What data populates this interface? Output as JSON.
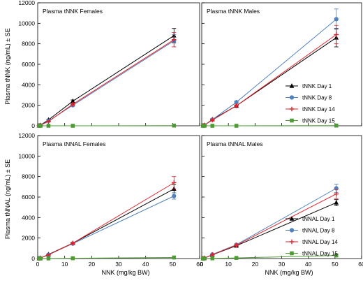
{
  "figure": {
    "xlabel": "NNK (mg/kg BW)",
    "ylabel_top": "Plasma tNNK (ng/mL) ± SE",
    "ylabel_bottom": "Plasma tNNAL (ng/mL) ± SE"
  },
  "chart_data": [
    {
      "type": "line",
      "title": "Plasma tNNK Females",
      "xlabel": "NNK (mg/kg BW)",
      "ylabel": "Plasma tNNK (ng/mL) ± SE",
      "xlim": [
        0,
        60
      ],
      "ylim": [
        0,
        12000
      ],
      "xticks": [
        0,
        10,
        20,
        30,
        40,
        50,
        60
      ],
      "yticks": [
        0,
        2000,
        4000,
        6000,
        8000,
        10000,
        12000
      ],
      "grid": false,
      "legend": "none",
      "series": [
        {
          "name": "tNNK Day 1",
          "color": "#000000",
          "marker": "triangle",
          "x": [
            0.5,
            1,
            4,
            13,
            50.5
          ],
          "y": [
            10,
            60,
            580,
            2400,
            8800
          ],
          "err": [
            0,
            0,
            60,
            120,
            700
          ]
        },
        {
          "name": "tNNK Day 8",
          "color": "#4f81bd",
          "marker": "circle",
          "x": [
            0.5,
            1,
            4,
            13,
            50.5
          ],
          "y": [
            10,
            50,
            480,
            2000,
            8300
          ],
          "err": [
            0,
            0,
            50,
            100,
            600
          ]
        },
        {
          "name": "tNNK Day 14",
          "color": "#e0212b",
          "marker": "plus",
          "x": [
            0.5,
            1,
            4,
            13,
            50.5
          ],
          "y": [
            10,
            50,
            420,
            2100,
            8400
          ],
          "err": [
            0,
            0,
            50,
            100,
            700
          ]
        },
        {
          "name": "tNNK Day 15",
          "color": "#4e9a35",
          "marker": "square",
          "x": [
            0.5,
            1,
            4,
            13,
            50.5
          ],
          "y": [
            0,
            0,
            0,
            0,
            20
          ],
          "err": [
            0,
            0,
            0,
            0,
            0
          ]
        }
      ]
    },
    {
      "type": "line",
      "title": "Plasma tNNK Males",
      "xlabel": "NNK (mg/kg BW)",
      "xlim": [
        0,
        60
      ],
      "ylim": [
        0,
        12000
      ],
      "xticks": [
        0,
        10,
        20,
        30,
        40,
        50,
        60
      ],
      "yticks": [
        0,
        2000,
        4000,
        6000,
        8000,
        10000,
        12000
      ],
      "grid": false,
      "legend": "lower-right",
      "series": [
        {
          "name": "tNNK Day 1",
          "color": "#000000",
          "marker": "triangle",
          "x": [
            0.5,
            1,
            4,
            13,
            50.5
          ],
          "y": [
            10,
            60,
            620,
            1950,
            8600
          ],
          "err": [
            0,
            0,
            60,
            100,
            900
          ]
        },
        {
          "name": "tNNK Day 8",
          "color": "#4f81bd",
          "marker": "circle",
          "x": [
            0.5,
            1,
            4,
            13,
            50.5
          ],
          "y": [
            10,
            60,
            600,
            2300,
            10400
          ],
          "err": [
            0,
            0,
            60,
            120,
            1000
          ]
        },
        {
          "name": "tNNK Day 14",
          "color": "#e0212b",
          "marker": "plus",
          "x": [
            0.5,
            1,
            4,
            13,
            50.5
          ],
          "y": [
            10,
            60,
            560,
            1950,
            8900
          ],
          "err": [
            0,
            0,
            60,
            100,
            900
          ]
        },
        {
          "name": "tNNK Day 15",
          "color": "#4e9a35",
          "marker": "square",
          "x": [
            0.5,
            1,
            4,
            13,
            50.5
          ],
          "y": [
            0,
            0,
            0,
            0,
            20
          ],
          "err": [
            0,
            0,
            0,
            0,
            0
          ]
        }
      ]
    },
    {
      "type": "line",
      "title": "Plasma tNNAL Females",
      "xlabel": "NNK (mg/kg BW)",
      "ylabel": "Plasma tNNAL (ng/mL) ± SE",
      "xlim": [
        0,
        60
      ],
      "ylim": [
        0,
        12000
      ],
      "xticks": [
        0,
        10,
        20,
        30,
        40,
        50,
        60
      ],
      "yticks": [
        0,
        2000,
        4000,
        6000,
        8000,
        10000,
        12000
      ],
      "grid": false,
      "legend": "none",
      "series": [
        {
          "name": "tNNAL Day 1",
          "color": "#000000",
          "marker": "triangle",
          "x": [
            0.5,
            1,
            4,
            13,
            50.5
          ],
          "y": [
            10,
            40,
            400,
            1500,
            6800
          ],
          "err": [
            0,
            0,
            40,
            80,
            400
          ]
        },
        {
          "name": "tNNAL Day 8",
          "color": "#4f81bd",
          "marker": "circle",
          "x": [
            0.5,
            1,
            4,
            13,
            50.5
          ],
          "y": [
            10,
            40,
            380,
            1450,
            6100
          ],
          "err": [
            0,
            0,
            40,
            80,
            300
          ]
        },
        {
          "name": "tNNAL Day 14",
          "color": "#e0212b",
          "marker": "plus",
          "x": [
            0.5,
            1,
            4,
            13,
            50.5
          ],
          "y": [
            10,
            40,
            360,
            1500,
            7400
          ],
          "err": [
            0,
            0,
            40,
            80,
            600
          ]
        },
        {
          "name": "tNNAL Day 15",
          "color": "#4e9a35",
          "marker": "square",
          "x": [
            0.5,
            1,
            4,
            13,
            50.5
          ],
          "y": [
            0,
            5,
            10,
            30,
            100
          ],
          "err": [
            0,
            0,
            0,
            0,
            0
          ]
        }
      ]
    },
    {
      "type": "line",
      "title": "Plasma tNNAL Males",
      "xlabel": "NNK (mg/kg BW)",
      "xlim": [
        0,
        60
      ],
      "ylim": [
        0,
        12000
      ],
      "xticks": [
        0,
        10,
        20,
        30,
        40,
        50,
        60
      ],
      "yticks": [
        0,
        2000,
        4000,
        6000,
        8000,
        10000,
        12000
      ],
      "grid": false,
      "legend": "lower-right",
      "series": [
        {
          "name": "tNNAL Day 1",
          "color": "#000000",
          "marker": "triangle",
          "x": [
            0.5,
            1,
            4,
            13,
            50.5
          ],
          "y": [
            10,
            40,
            360,
            1250,
            5450
          ],
          "err": [
            0,
            0,
            40,
            80,
            300
          ]
        },
        {
          "name": "tNNAL Day 8",
          "color": "#4f81bd",
          "marker": "circle",
          "x": [
            0.5,
            1,
            4,
            13,
            50.5
          ],
          "y": [
            10,
            40,
            400,
            1350,
            6850
          ],
          "err": [
            0,
            0,
            40,
            80,
            400
          ]
        },
        {
          "name": "tNNAL Day 14",
          "color": "#e0212b",
          "marker": "plus",
          "x": [
            0.5,
            1,
            4,
            13,
            50.5
          ],
          "y": [
            10,
            40,
            380,
            1300,
            6300
          ],
          "err": [
            0,
            0,
            40,
            80,
            450
          ]
        },
        {
          "name": "tNNAL Day 15",
          "color": "#4e9a35",
          "marker": "square",
          "x": [
            0.5,
            1,
            4,
            13,
            50.5
          ],
          "y": [
            0,
            5,
            20,
            60,
            300
          ],
          "err": [
            0,
            0,
            0,
            0,
            0
          ]
        }
      ]
    }
  ]
}
